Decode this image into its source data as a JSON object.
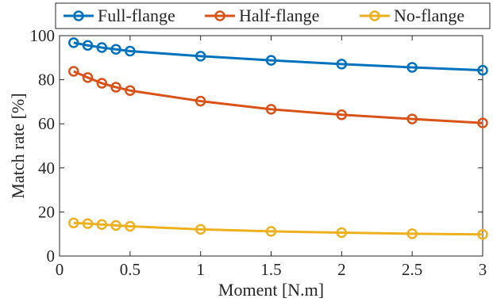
{
  "chart_data": {
    "type": "line",
    "xlabel": "Moment [N.m]",
    "ylabel": "Match rate [%]",
    "xlim": [
      0,
      3
    ],
    "ylim": [
      0,
      100
    ],
    "xticks": [
      0,
      0.5,
      1,
      1.5,
      2,
      2.5,
      3
    ],
    "xtick_labels": [
      "0",
      "0.5",
      "1",
      "1.5",
      "2",
      "2.5",
      "3"
    ],
    "yticks": [
      0,
      20,
      40,
      60,
      80,
      100
    ],
    "ytick_labels": [
      "0",
      "20",
      "40",
      "60",
      "80",
      "100"
    ],
    "grid": false,
    "legend_position": "top",
    "x": [
      0.1,
      0.2,
      0.3,
      0.4,
      0.5,
      1,
      1.5,
      2,
      2.5,
      3
    ],
    "series": [
      {
        "name": "Full-flange",
        "color": "#0072BD",
        "marker": "circle",
        "values": [
          96.8,
          95.6,
          94.6,
          93.8,
          93.0,
          90.7,
          88.8,
          87.1,
          85.6,
          84.3
        ]
      },
      {
        "name": "Half-flange",
        "color": "#D95319",
        "marker": "circle",
        "values": [
          83.8,
          81.0,
          78.4,
          76.6,
          75.1,
          70.3,
          66.6,
          64.1,
          62.2,
          60.4
        ]
      },
      {
        "name": "No-flange",
        "color": "#EDB120",
        "marker": "circle",
        "values": [
          15.0,
          14.7,
          14.3,
          13.9,
          13.5,
          12.1,
          11.2,
          10.6,
          10.1,
          9.8
        ]
      }
    ]
  }
}
